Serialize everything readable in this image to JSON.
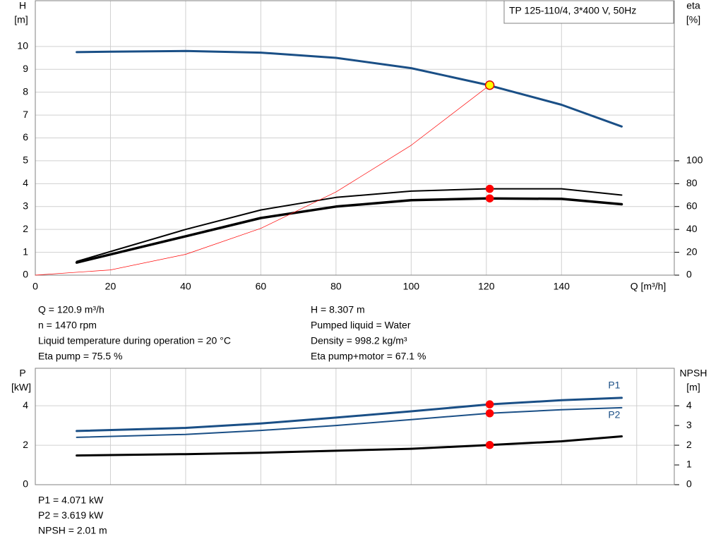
{
  "chart_data": [
    {
      "type": "line",
      "title": "TP 125-110/4, 3*400 V, 50Hz",
      "y_label": [
        "H",
        "[m]"
      ],
      "y2_label": [
        "eta",
        "[%]"
      ],
      "x_label": "Q [m³/h]",
      "xlim": [
        0,
        170
      ],
      "xticks": [
        0,
        20,
        40,
        60,
        80,
        100,
        120,
        140
      ],
      "ylim": [
        0,
        12
      ],
      "yticks": [
        0,
        1,
        2,
        3,
        4,
        5,
        6,
        7,
        8,
        9,
        10
      ],
      "y2lim": [
        0,
        240
      ],
      "y2ticks": [
        0,
        20,
        40,
        60,
        80,
        100
      ],
      "grid": true,
      "series": [
        {
          "color": "#1a4f86",
          "width": 3,
          "x": [
            11,
            20,
            40,
            60,
            80,
            100,
            120,
            140,
            156
          ],
          "values": [
            9.75,
            9.77,
            9.8,
            9.73,
            9.5,
            9.05,
            8.33,
            7.45,
            6.5
          ]
        },
        {
          "color": "#000000",
          "width": 2,
          "axis": "y2",
          "x": [
            11,
            40,
            60,
            80,
            100,
            120,
            140,
            156
          ],
          "values": [
            12,
            40,
            57,
            68,
            73.5,
            75.5,
            75.5,
            70
          ]
        },
        {
          "color": "#000000",
          "width": 3.5,
          "axis": "y2",
          "x": [
            11,
            40,
            60,
            80,
            100,
            120,
            140,
            156
          ],
          "values": [
            11,
            34,
            50,
            60,
            65.5,
            67.1,
            66.7,
            62
          ]
        },
        {
          "color": "#ff0000",
          "width": 0.7,
          "x": [
            0,
            20,
            40,
            60,
            80,
            100,
            120.9
          ],
          "values": [
            0,
            0.227,
            0.909,
            2.045,
            3.636,
            5.68,
            8.307
          ]
        }
      ],
      "points": [
        {
          "x": 120.9,
          "y": 8.307,
          "color": "#ffff00",
          "edge": "#e00000"
        },
        {
          "x": 120.9,
          "y": 75.5,
          "axis": "y2",
          "color": "#ff0000",
          "edge": "#ff0000"
        },
        {
          "x": 120.9,
          "y": 67.1,
          "axis": "y2",
          "color": "#ff0000",
          "edge": "#ff0000"
        }
      ],
      "info": [
        [
          "Q = 120.9 m³/h",
          "n = 1470 rpm",
          "Liquid temperature during operation = 20 °C",
          "Eta pump = 75.5 %"
        ],
        [
          "H = 8.307 m",
          "Pumped liquid = Water",
          "Density = 998.2 kg/m³",
          "Eta pump+motor = 67.1 %"
        ]
      ]
    },
    {
      "type": "line",
      "y_label": [
        "P",
        "[kW]"
      ],
      "y2_label": [
        "NPSH",
        "[m]"
      ],
      "xlim": [
        0,
        170
      ],
      "xgrid": [
        0,
        20,
        40,
        60,
        80,
        100,
        120,
        140,
        160
      ],
      "ylim": [
        0,
        5.9
      ],
      "yticks": [
        0,
        2,
        4
      ],
      "y2lim": [
        0,
        5.9
      ],
      "y2ticks": [
        0,
        1,
        2,
        3,
        4
      ],
      "grid": true,
      "series": [
        {
          "name": "P1",
          "color": "#1a4f86",
          "width": 3,
          "x": [
            11,
            40,
            60,
            80,
            100,
            120.9,
            140,
            156
          ],
          "values": [
            2.72,
            2.88,
            3.1,
            3.4,
            3.72,
            4.071,
            4.28,
            4.4
          ]
        },
        {
          "name": "P2",
          "color": "#1a4f86",
          "width": 2,
          "x": [
            11,
            40,
            60,
            80,
            100,
            120.9,
            140,
            156
          ],
          "values": [
            2.4,
            2.55,
            2.75,
            3.0,
            3.3,
            3.619,
            3.8,
            3.9
          ]
        },
        {
          "color": "#000000",
          "width": 3,
          "axis": "y2",
          "x": [
            11,
            40,
            60,
            80,
            100,
            120.9,
            140,
            156
          ],
          "values": [
            1.48,
            1.55,
            1.62,
            1.72,
            1.82,
            2.01,
            2.2,
            2.45
          ]
        }
      ],
      "points": [
        {
          "x": 120.9,
          "y": 4.071,
          "color": "#ff0000",
          "edge": "#ff0000"
        },
        {
          "x": 120.9,
          "y": 3.619,
          "color": "#ff0000",
          "edge": "#ff0000"
        },
        {
          "x": 120.9,
          "y": 2.01,
          "axis": "y2",
          "color": "#ff0000",
          "edge": "#ff0000"
        }
      ],
      "info": [
        [
          "P1 = 4.071 kW",
          "P2 = 3.619 kW",
          "NPSH = 2.01 m"
        ]
      ]
    }
  ]
}
